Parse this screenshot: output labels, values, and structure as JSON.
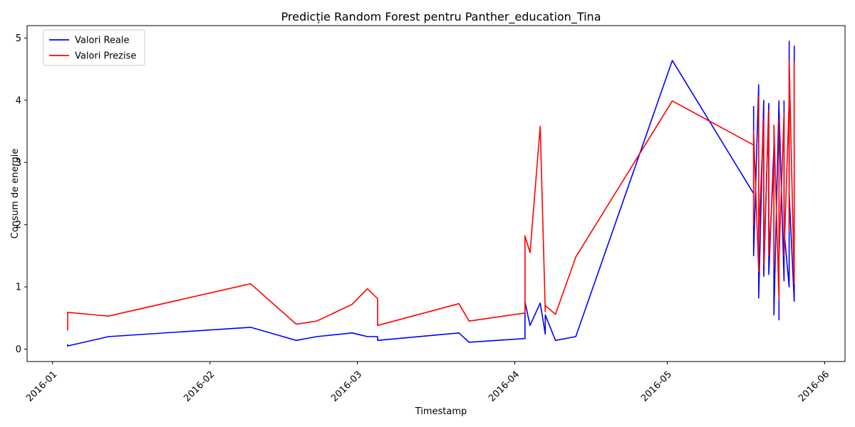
{
  "chart_data": {
    "type": "line",
    "title": "Predicție Random Forest pentru Panther_education_Tina",
    "xlabel": "Timestamp",
    "ylabel": "Consum de energie",
    "x_ticks": [
      "2016-01",
      "2016-02",
      "2016-03",
      "2016-04",
      "2016-05",
      "2016-06"
    ],
    "y_ticks": [
      "0",
      "1",
      "2",
      "3",
      "4",
      "5"
    ],
    "xlim": [
      "2015-12-27",
      "2016-06-05"
    ],
    "ylim": [
      -0.2,
      5.2
    ],
    "grid": false,
    "legend_position": "top-left",
    "series": [
      {
        "name": "Valori Reale",
        "color": "#0000ff",
        "points": [
          [
            "2016-01-04",
            0.08
          ],
          [
            "2016-01-04",
            0.05
          ],
          [
            "2016-01-12",
            0.2
          ],
          [
            "2016-02-09",
            0.35
          ],
          [
            "2016-02-18",
            0.14
          ],
          [
            "2016-02-22",
            0.2
          ],
          [
            "2016-02-29",
            0.26
          ],
          [
            "2016-03-03",
            0.2
          ],
          [
            "2016-03-05",
            0.2
          ],
          [
            "2016-03-05",
            0.14
          ],
          [
            "2016-03-21",
            0.26
          ],
          [
            "2016-03-23",
            0.11
          ],
          [
            "2016-04-03",
            0.17
          ],
          [
            "2016-04-03",
            0.76
          ],
          [
            "2016-04-04",
            0.38
          ],
          [
            "2016-04-06",
            0.74
          ],
          [
            "2016-04-07",
            0.24
          ],
          [
            "2016-04-07",
            0.55
          ],
          [
            "2016-04-09",
            0.14
          ],
          [
            "2016-04-13",
            0.2
          ],
          [
            "2016-05-02",
            4.64
          ],
          [
            "2016-05-18",
            2.5
          ],
          [
            "2016-05-18",
            3.9
          ],
          [
            "2016-05-18",
            1.5
          ],
          [
            "2016-05-19",
            4.25
          ],
          [
            "2016-05-19",
            1.7
          ],
          [
            "2016-05-19",
            0.82
          ],
          [
            "2016-05-20",
            4.0
          ],
          [
            "2016-05-20",
            1.17
          ],
          [
            "2016-05-21",
            3.95
          ],
          [
            "2016-05-21",
            1.2
          ],
          [
            "2016-05-22",
            3.25
          ],
          [
            "2016-05-22",
            1.15
          ],
          [
            "2016-05-22",
            2.0
          ],
          [
            "2016-05-22",
            0.55
          ],
          [
            "2016-05-23",
            3.99
          ],
          [
            "2016-05-23",
            1.0
          ],
          [
            "2016-05-23",
            0.47
          ],
          [
            "2016-05-23",
            3.9
          ],
          [
            "2016-05-24",
            1.1
          ],
          [
            "2016-05-24",
            3.99
          ],
          [
            "2016-05-24",
            1.9
          ],
          [
            "2016-05-25",
            1.0
          ],
          [
            "2016-05-25",
            4.95
          ],
          [
            "2016-05-25",
            2.5
          ],
          [
            "2016-05-26",
            0.77
          ],
          [
            "2016-05-26",
            4.87
          ],
          [
            "2016-05-26",
            1.15
          ],
          [
            "2016-05-26",
            2.0
          ],
          [
            "2016-05-26",
            1.7
          ]
        ]
      },
      {
        "name": "Valori Prezise",
        "color": "#ff0000",
        "points": [
          [
            "2016-01-04",
            0.3
          ],
          [
            "2016-01-04",
            0.59
          ],
          [
            "2016-01-12",
            0.53
          ],
          [
            "2016-02-09",
            1.05
          ],
          [
            "2016-02-18",
            0.4
          ],
          [
            "2016-02-22",
            0.45
          ],
          [
            "2016-02-29",
            0.72
          ],
          [
            "2016-03-03",
            0.97
          ],
          [
            "2016-03-05",
            0.81
          ],
          [
            "2016-03-05",
            0.38
          ],
          [
            "2016-03-21",
            0.73
          ],
          [
            "2016-03-23",
            0.45
          ],
          [
            "2016-04-03",
            0.58
          ],
          [
            "2016-04-03",
            1.82
          ],
          [
            "2016-04-04",
            1.55
          ],
          [
            "2016-04-06",
            3.58
          ],
          [
            "2016-04-07",
            0.6
          ],
          [
            "2016-04-07",
            0.7
          ],
          [
            "2016-04-09",
            0.56
          ],
          [
            "2016-04-13",
            1.48
          ],
          [
            "2016-05-02",
            3.99
          ],
          [
            "2016-05-18",
            3.28
          ],
          [
            "2016-05-18",
            2.0
          ],
          [
            "2016-05-18",
            3.5
          ],
          [
            "2016-05-19",
            1.25
          ],
          [
            "2016-05-19",
            4.05
          ],
          [
            "2016-05-19",
            1.8
          ],
          [
            "2016-05-20",
            3.7
          ],
          [
            "2016-05-20",
            1.35
          ],
          [
            "2016-05-21",
            3.85
          ],
          [
            "2016-05-21",
            1.5
          ],
          [
            "2016-05-22",
            2.95
          ],
          [
            "2016-05-22",
            1.3
          ],
          [
            "2016-05-22",
            3.6
          ],
          [
            "2016-05-23",
            0.8
          ],
          [
            "2016-05-23",
            3.7
          ],
          [
            "2016-05-23",
            1.45
          ],
          [
            "2016-05-24",
            3.8
          ],
          [
            "2016-05-24",
            1.5
          ],
          [
            "2016-05-25",
            4.0
          ],
          [
            "2016-05-25",
            1.9
          ],
          [
            "2016-05-25",
            4.65
          ],
          [
            "2016-05-26",
            1.05
          ],
          [
            "2016-05-26",
            4.6
          ],
          [
            "2016-05-26",
            1.4
          ],
          [
            "2016-05-26",
            1.85
          ],
          [
            "2016-05-26",
            1.6
          ]
        ]
      }
    ]
  }
}
